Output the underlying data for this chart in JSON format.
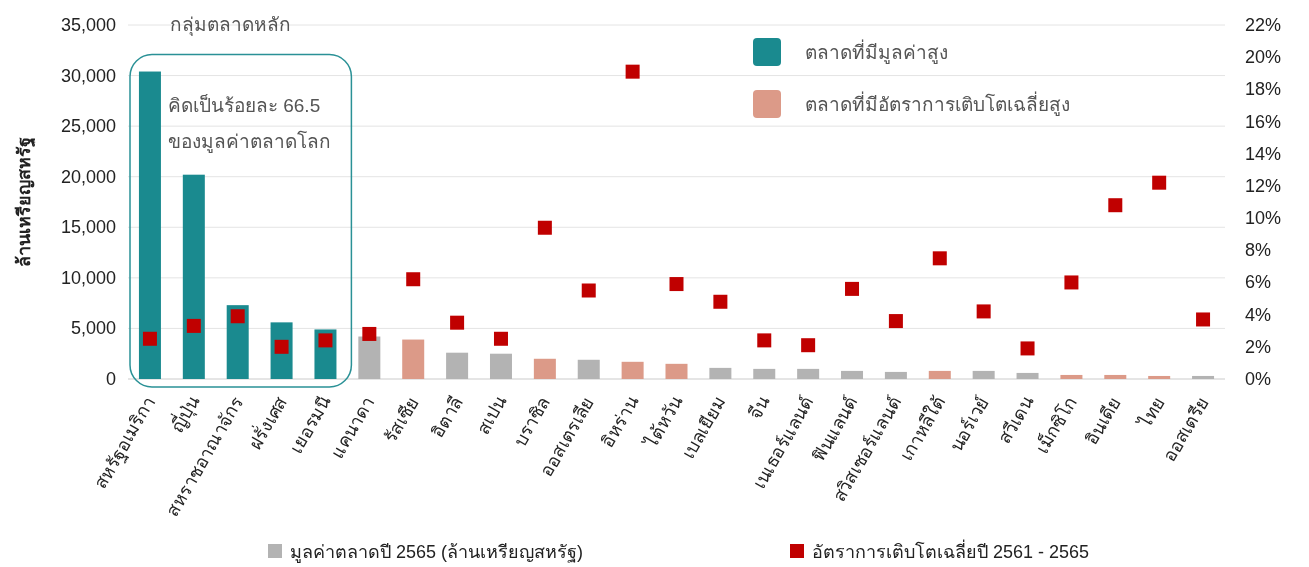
{
  "chart_data": {
    "type": "bar",
    "ylabel": "ล้านเหรียญสหรัฐ",
    "categories": [
      "สหรัฐอเมริกา",
      "ญี่ปุ่น",
      "สหราชอาณาจักร",
      "ฝรั่งเศส",
      "เยอรมนี",
      "แคนาดา",
      "รัสเซีย",
      "อิตาลี",
      "สเปน",
      "บราซิล",
      "ออสเตรเลีย",
      "อิหร่าน",
      "ไต้หวัน",
      "เบลเยียม",
      "จีน",
      "เนเธอร์แลนด์",
      "ฟินแลนด์",
      "สวิสเซอร์แลนด์",
      "เกาหลีใต้",
      "นอร์เวย์",
      "สวีเดน",
      "เม็กซิโก",
      "อินเดีย",
      "ไทย",
      "ออสเตรีย"
    ],
    "series": [
      {
        "name": "ตลาดที่มีมูลค่าสูง",
        "color": "#1a8a8f",
        "values": [
          30400,
          20200,
          7300,
          5600,
          4900,
          null,
          null,
          null,
          null,
          null,
          null,
          null,
          null,
          null,
          null,
          null,
          null,
          null,
          null,
          null,
          null,
          null,
          null,
          null,
          null
        ]
      },
      {
        "name": "ตลาดที่มีอัตราการเติบโตเฉลี่ยสูง",
        "color": "#dc9a88",
        "values": [
          null,
          null,
          null,
          null,
          null,
          null,
          3900,
          null,
          null,
          2000,
          null,
          1700,
          1500,
          null,
          null,
          null,
          null,
          null,
          800,
          null,
          null,
          400,
          400,
          300,
          null
        ]
      },
      {
        "name": "มูลค่าตลาดปี 2565 (ล้านเหรียญสหรัฐ)",
        "color": "#b3b3b3",
        "values": [
          null,
          null,
          null,
          null,
          null,
          4200,
          null,
          2600,
          2500,
          null,
          1900,
          null,
          null,
          1100,
          1000,
          1000,
          800,
          700,
          null,
          800,
          600,
          null,
          null,
          null,
          300
        ]
      },
      {
        "name": "อัตราการเติบโตเฉลี่ยปี 2561 - 2565",
        "type": "scatter",
        "axis": "y2",
        "color": "#c00000",
        "marker": "square",
        "values": [
          2.5,
          3.3,
          3.9,
          2.0,
          2.4,
          2.8,
          6.2,
          3.5,
          2.5,
          9.4,
          5.5,
          19.1,
          5.9,
          4.8,
          2.4,
          2.1,
          5.6,
          3.6,
          7.5,
          4.2,
          1.9,
          6.0,
          10.8,
          12.2,
          3.7
        ]
      }
    ],
    "ylim": [
      0,
      35000
    ],
    "yticks": [
      0,
      {
        "value": 5000,
        "label": "5,000"
      },
      {
        "value": 10000,
        "label": "10,000"
      },
      {
        "value": 15000,
        "label": "15,000"
      },
      {
        "value": 20000,
        "label": "20,000"
      },
      {
        "value": 25000,
        "label": "25,000"
      },
      {
        "value": 30000,
        "label": "30,000"
      },
      {
        "value": 35000,
        "label": "35,000"
      }
    ],
    "y2lim": [
      0,
      22
    ],
    "y2ticks": [
      {
        "value": 0,
        "label": "0%"
      },
      {
        "value": 2,
        "label": "2%"
      },
      {
        "value": 4,
        "label": "4%"
      },
      {
        "value": 6,
        "label": "6%"
      },
      {
        "value": 8,
        "label": "8%"
      },
      {
        "value": 10,
        "label": "10%"
      },
      {
        "value": 12,
        "label": "12%"
      },
      {
        "value": 14,
        "label": "14%"
      },
      {
        "value": 16,
        "label": "16%"
      },
      {
        "value": 18,
        "label": "18%"
      },
      {
        "value": 20,
        "label": "20%"
      },
      {
        "value": 22,
        "label": "22%"
      }
    ],
    "grid": "y",
    "legend": "bottom",
    "annotations": [
      "กลุ่มตลาดหลัก",
      "คิดเป็นร้อยละ 66.5\nของมูลค่าตลาดโลก"
    ]
  }
}
